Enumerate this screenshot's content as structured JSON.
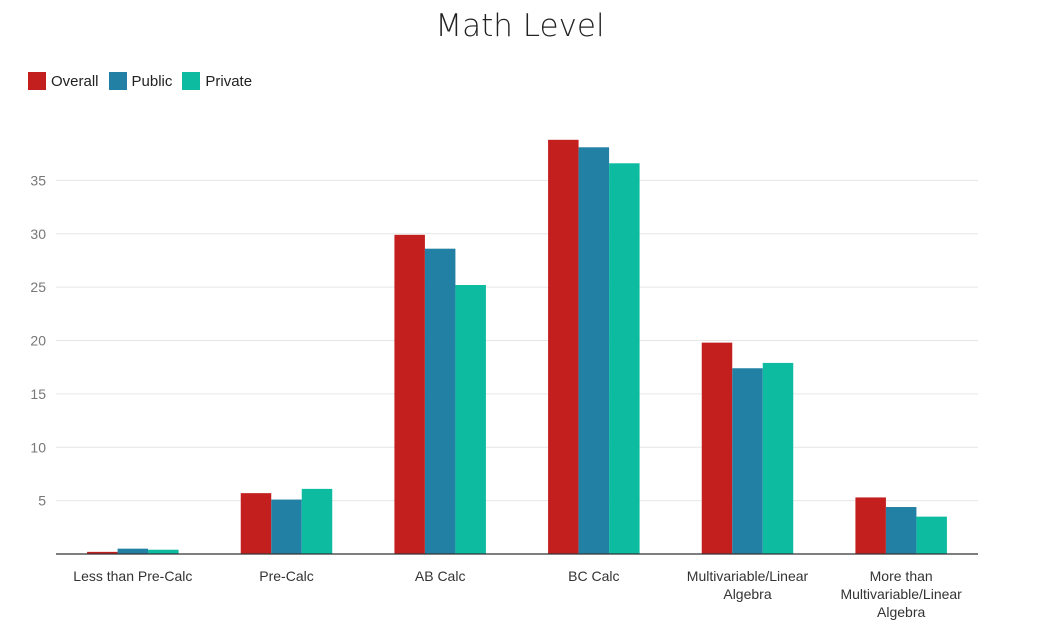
{
  "chart_data": {
    "type": "bar",
    "title": "Math Level",
    "xlabel": "",
    "ylabel": "",
    "ylim": [
      0,
      40
    ],
    "yticks": [
      5,
      10,
      15,
      20,
      25,
      30,
      35
    ],
    "grid": true,
    "legend_position": "top-left",
    "categories": [
      "Less than Pre-Calc",
      "Pre-Calc",
      "AB Calc",
      "BC Calc",
      "Multivariable/Linear Algebra",
      "More than Multivariable/Linear Algebra"
    ],
    "category_lines": [
      [
        "Less than Pre-Calc"
      ],
      [
        "Pre-Calc"
      ],
      [
        "AB Calc"
      ],
      [
        "BC Calc"
      ],
      [
        "Multivariable/Linear",
        "Algebra"
      ],
      [
        "More than",
        "Multivariable/Linear",
        "Algebra"
      ]
    ],
    "series": [
      {
        "name": "Overall",
        "color": "#c41f1f",
        "values": [
          0.2,
          5.7,
          29.9,
          38.8,
          19.8,
          5.3
        ]
      },
      {
        "name": "Public",
        "color": "#2180a3",
        "values": [
          0.5,
          5.1,
          28.6,
          38.1,
          17.4,
          4.4
        ]
      },
      {
        "name": "Private",
        "color": "#0cbba0",
        "values": [
          0.4,
          6.1,
          25.2,
          36.6,
          17.9,
          3.5
        ]
      }
    ]
  }
}
